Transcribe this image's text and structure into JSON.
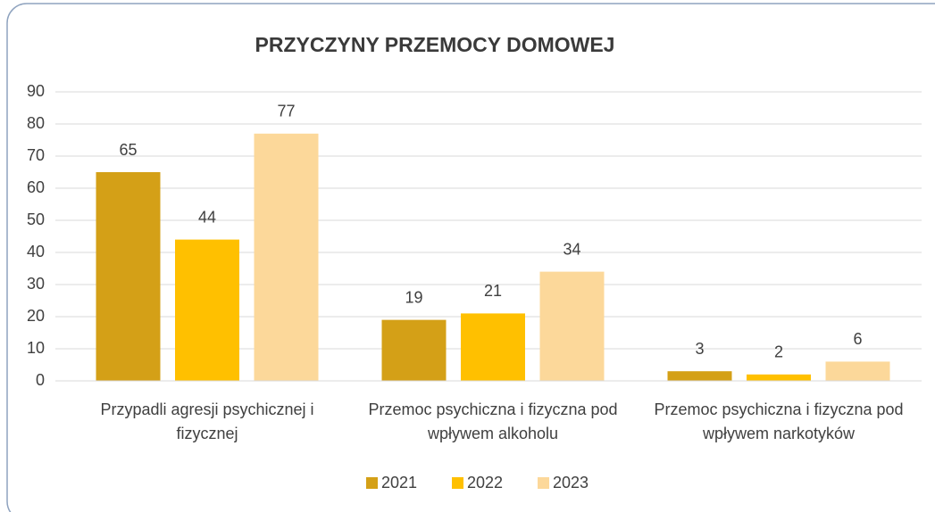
{
  "chart_data": {
    "type": "bar",
    "title": "PRZYCZYNY PRZEMOCY DOMOWEJ",
    "categories": [
      "Przypadli agresji psychicznej i fizycznej",
      "Przemoc psychiczna i fizyczna pod wpływem alkoholu",
      "Przemoc psychiczna i fizyczna pod wpływem narkotyków"
    ],
    "series": [
      {
        "name": "2021",
        "color": "#d4a017",
        "values": [
          65,
          19,
          3
        ]
      },
      {
        "name": "2022",
        "color": "#ffc000",
        "values": [
          44,
          21,
          2
        ]
      },
      {
        "name": "2023",
        "color": "#fcd89a",
        "values": [
          77,
          34,
          6
        ]
      }
    ],
    "ylim": [
      0,
      90
    ],
    "yticks": [
      0,
      10,
      20,
      30,
      40,
      50,
      60,
      70,
      80,
      90
    ],
    "grid": true,
    "legend": "bottom"
  }
}
